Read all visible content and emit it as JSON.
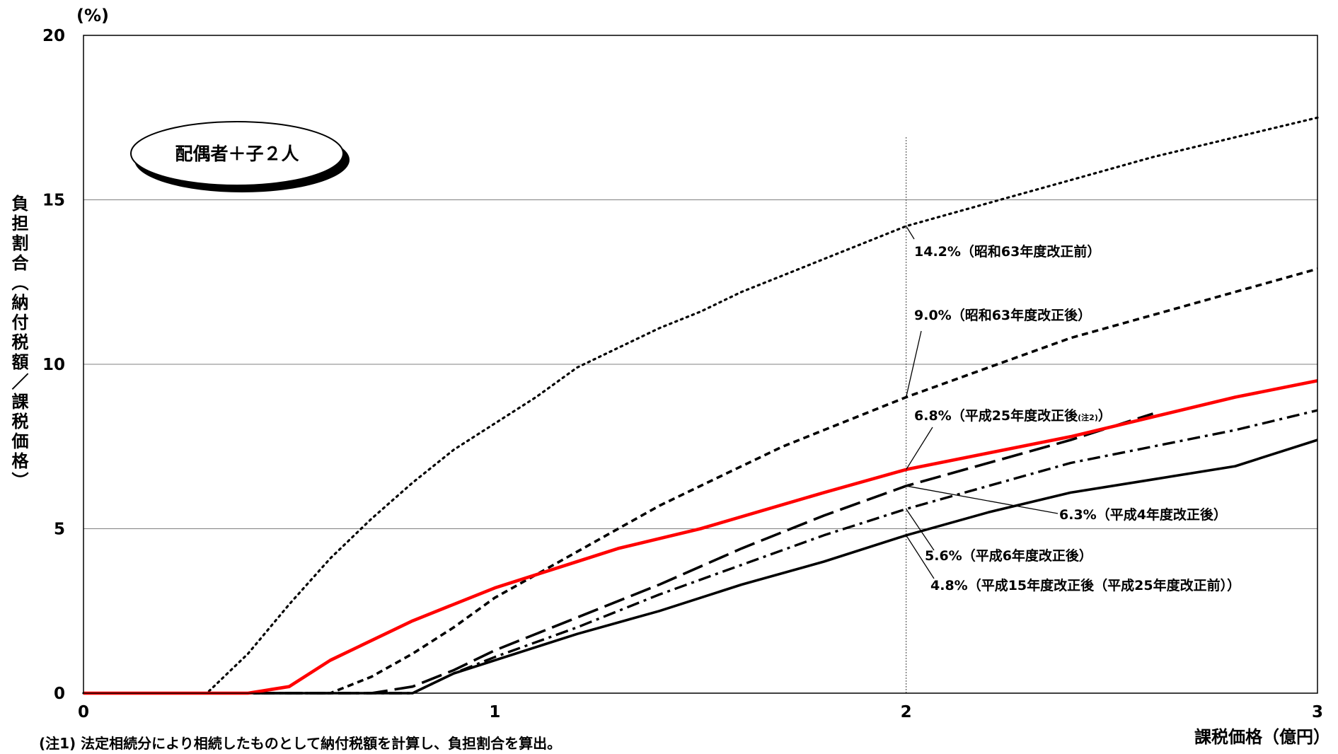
{
  "chart_data": {
    "type": "line",
    "y_unit": "(%)",
    "ylabel": "負担割合（納付税額／課税価格）",
    "xlabel": "課税価格（億円）",
    "xlim": [
      0,
      3
    ],
    "ylim": [
      0,
      20
    ],
    "x_ticks": [
      "0",
      "1",
      "2",
      "3"
    ],
    "y_ticks": [
      "0",
      "5",
      "10",
      "15",
      "20"
    ],
    "grid": true,
    "reference_x": 2,
    "badge": "配偶者＋子２人",
    "footnote": "(注1) 法定相続分により相続したものとして納付税額を計算し、負担割合を算出。",
    "series": [
      {
        "key": "s63pre",
        "style": "dotted",
        "color": "#000000",
        "label_value": "14.2%",
        "label_text": "（昭和63年度改正前）",
        "x": [
          0,
          0.3,
          0.4,
          0.5,
          0.6,
          0.7,
          0.8,
          0.9,
          1.0,
          1.1,
          1.2,
          1.3,
          1.4,
          1.5,
          1.6,
          1.7,
          1.8,
          1.9,
          2.0,
          2.2,
          2.4,
          2.6,
          2.8,
          3.0
        ],
        "y": [
          0,
          0,
          1.2,
          2.7,
          4.1,
          5.3,
          6.4,
          7.4,
          8.2,
          9.0,
          9.9,
          10.5,
          11.1,
          11.6,
          12.2,
          12.7,
          13.2,
          13.7,
          14.2,
          14.9,
          15.6,
          16.3,
          16.9,
          17.5
        ]
      },
      {
        "key": "s63post",
        "style": "short-dash",
        "color": "#000000",
        "label_value": "9.0%",
        "label_text": "（昭和63年度改正後）",
        "x": [
          0,
          0.6,
          0.7,
          0.8,
          0.9,
          1.0,
          1.1,
          1.2,
          1.3,
          1.4,
          1.5,
          1.6,
          1.7,
          1.8,
          1.9,
          2.0,
          2.2,
          2.4,
          2.6,
          2.8,
          3.0
        ],
        "y": [
          0,
          0,
          0.5,
          1.2,
          2.0,
          2.9,
          3.6,
          4.3,
          5.0,
          5.7,
          6.3,
          6.9,
          7.5,
          8.0,
          8.5,
          9.0,
          9.9,
          10.8,
          11.5,
          12.2,
          12.9
        ]
      },
      {
        "key": "h25post",
        "style": "solid",
        "color": "#ff0000",
        "label_value": "6.8%",
        "label_text": "（平成25年度改正後",
        "label_note": "(注2)",
        "label_close": "）",
        "x": [
          0,
          0.4,
          0.5,
          0.6,
          0.8,
          1.0,
          1.2,
          1.3,
          1.5,
          1.8,
          2.0,
          2.2,
          2.4,
          2.6,
          2.8,
          3.0
        ],
        "y": [
          0,
          0,
          0.2,
          1.0,
          2.2,
          3.2,
          4.0,
          4.4,
          5.0,
          6.1,
          6.8,
          7.3,
          7.8,
          8.4,
          9.0,
          9.5
        ]
      },
      {
        "key": "h4post",
        "style": "long-dash",
        "color": "#000000",
        "label_value": "6.3%",
        "label_text": "（平成4年度改正後）",
        "x": [
          0,
          0.7,
          0.8,
          0.9,
          1.0,
          1.2,
          1.4,
          1.6,
          1.8,
          2.0,
          2.2,
          2.4,
          2.6
        ],
        "y": [
          0,
          0,
          0.2,
          0.7,
          1.3,
          2.3,
          3.3,
          4.4,
          5.4,
          6.3,
          7.0,
          7.7,
          8.5
        ]
      },
      {
        "key": "h6post",
        "style": "dash-dot",
        "color": "#000000",
        "label_value": "5.6%",
        "label_text": "（平成6年度改正後）",
        "x": [
          0,
          0.8,
          0.9,
          1.0,
          1.2,
          1.4,
          1.6,
          1.8,
          2.0,
          2.2,
          2.4,
          2.6,
          2.8,
          3.0
        ],
        "y": [
          0,
          0,
          0.6,
          1.1,
          2.0,
          3.0,
          3.9,
          4.8,
          5.6,
          6.3,
          7.0,
          7.5,
          8.0,
          8.6
        ]
      },
      {
        "key": "h15post",
        "style": "solid",
        "color": "#000000",
        "label_value": "4.8%",
        "label_text": "（平成15年度改正後（平成25年度改正前））",
        "x": [
          0,
          0.8,
          0.9,
          1.0,
          1.2,
          1.4,
          1.6,
          1.8,
          2.0,
          2.2,
          2.4,
          2.6,
          2.8,
          3.0
        ],
        "y": [
          0,
          0,
          0.6,
          1.0,
          1.8,
          2.5,
          3.3,
          4.0,
          4.8,
          5.5,
          6.1,
          6.5,
          6.9,
          7.7
        ]
      }
    ]
  }
}
